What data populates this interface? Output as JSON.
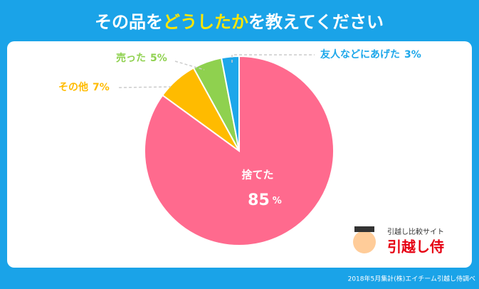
{
  "chart_data": {
    "type": "pie",
    "title_parts": [
      "その品を",
      "どうしたか",
      "を教えてください"
    ],
    "categories": [
      "捨てた",
      "その他",
      "売った",
      "友人などにあげた"
    ],
    "values": [
      85,
      7,
      5,
      3
    ],
    "unit": "%",
    "colors": [
      "#ff6a8e",
      "#ffbb00",
      "#8fd14f",
      "#1da7ea"
    ],
    "logo": {
      "tagline": "引越し比較サイト",
      "name": "引越し侍"
    },
    "source": "2018年5月集計(株)エイチーム引越し侍調べ"
  }
}
